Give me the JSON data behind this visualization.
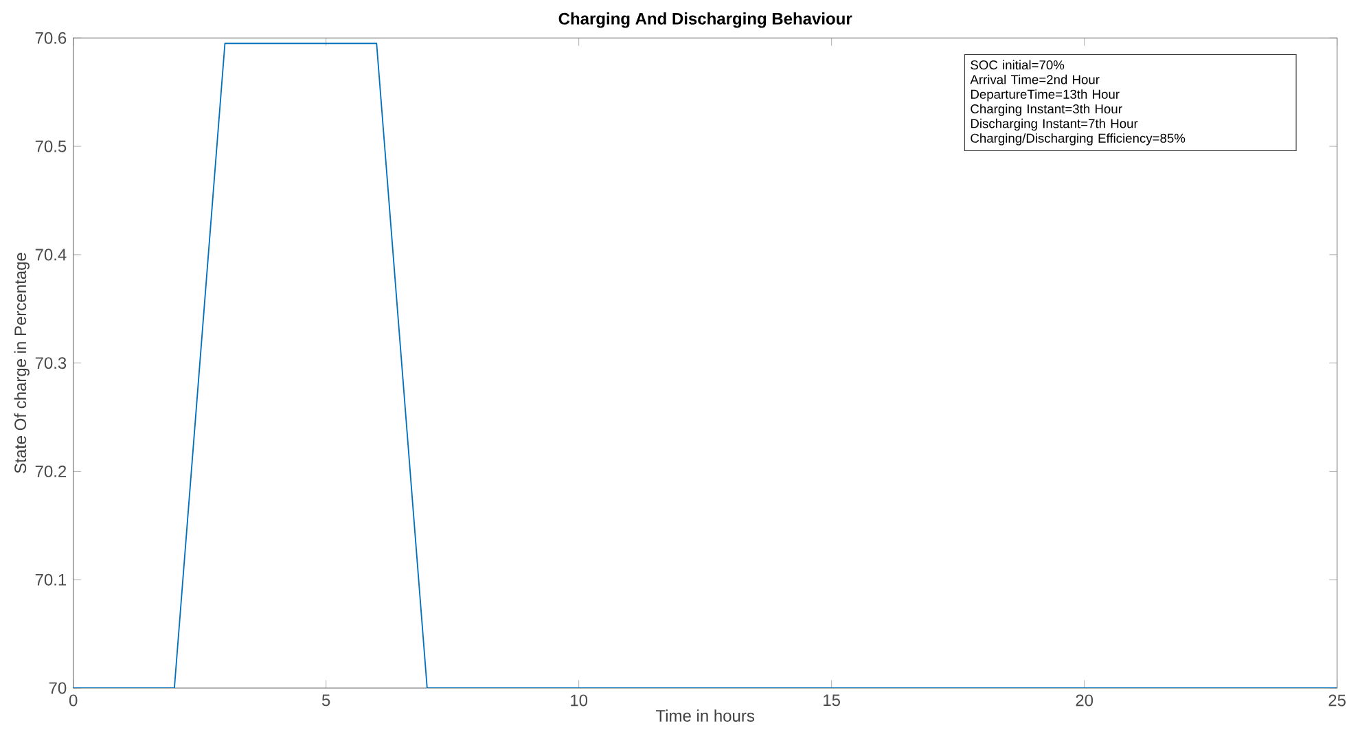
{
  "chart_data": {
    "type": "line",
    "title": "Charging And Discharging Behaviour",
    "xlabel": "Time in hours",
    "ylabel": "State Of charge in Percentage",
    "x": [
      0,
      2,
      3,
      6,
      7,
      25
    ],
    "series": [
      {
        "color": "#0072bd",
        "values": [
          70,
          70,
          70.595,
          70.595,
          70,
          70
        ]
      }
    ],
    "xlim": [
      0,
      25
    ],
    "ylim": [
      70,
      70.6
    ],
    "xticks": [
      0,
      5,
      10,
      15,
      20,
      25
    ],
    "yticks": [
      70,
      70.1,
      70.2,
      70.3,
      70.4,
      70.5,
      70.6
    ],
    "grid": false,
    "marker": "none",
    "line_style": "solid",
    "annotations": [
      "SOC initial=70%",
      "Arrival Time=2nd Hour",
      "DepartureTime=13th Hour",
      "Charging Instant=3th Hour",
      "Discharging Instant=7th Hour",
      "Charging/Discharging Efficiency=85%"
    ]
  }
}
